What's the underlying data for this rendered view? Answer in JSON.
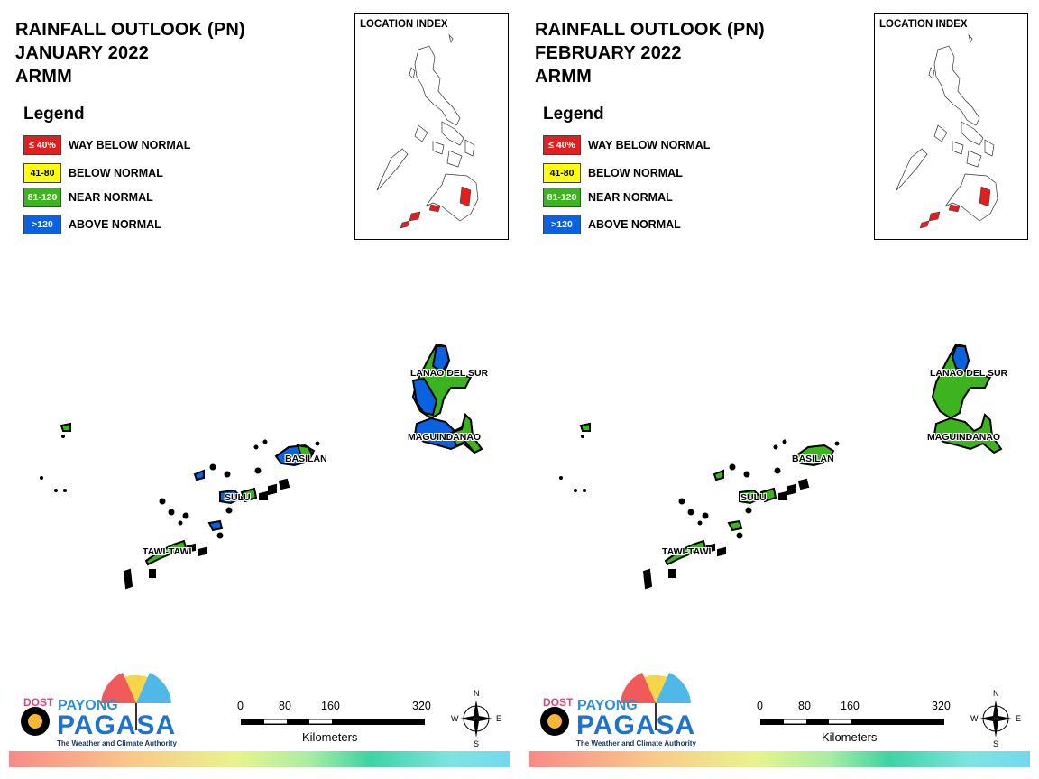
{
  "colors": {
    "way_below_normal": "#e02020",
    "below_normal": "#ffff00",
    "near_normal": "#3cb31f",
    "above_normal": "#0a62e0"
  },
  "panels": [
    {
      "title_line1": "RAINFALL OUTLOOK (PN)",
      "title_line2": "JANUARY 2022",
      "title_line3": "ARMM",
      "legend_title": "Legend",
      "legend": [
        {
          "swatch": "≤ 40%",
          "label": "WAY BELOW NORMAL"
        },
        {
          "swatch": "41-80",
          "label": "BELOW NORMAL"
        },
        {
          "swatch": "81-120",
          "label": "NEAR NORMAL"
        },
        {
          "swatch": ">120",
          "label": "ABOVE NORMAL"
        }
      ],
      "index_label": "LOCATION INDEX",
      "regions": {
        "lanao_del_sur": {
          "label": "LANAO DEL SUR",
          "category": "mixed near/above normal"
        },
        "maguindanao": {
          "label": "MAGUINDANAO",
          "category": "mixed near/above normal"
        },
        "basilan": {
          "label": "BASILAN",
          "category": "above normal"
        },
        "sulu": {
          "label": "SULU",
          "category": "mixed near/above normal"
        },
        "tawi_tawi": {
          "label": "TAWI-TAWI",
          "category": "near normal"
        }
      },
      "logo": {
        "org": "DOST",
        "brand_top": "PAYONG",
        "brand_main": "PAGASA",
        "tagline": "The Weather and Climate Authority"
      },
      "scale": {
        "ticks": [
          "0",
          "80",
          "160",
          "320"
        ],
        "unit": "Kilometers"
      },
      "compass": {
        "n": "N",
        "s": "S",
        "e": "E",
        "w": "W"
      }
    },
    {
      "title_line1": "RAINFALL OUTLOOK (PN)",
      "title_line2": "FEBRUARY 2022",
      "title_line3": "ARMM",
      "legend_title": "Legend",
      "legend": [
        {
          "swatch": "≤ 40%",
          "label": "WAY BELOW NORMAL"
        },
        {
          "swatch": "41-80",
          "label": "BELOW NORMAL"
        },
        {
          "swatch": "81-120",
          "label": "NEAR NORMAL"
        },
        {
          "swatch": ">120",
          "label": "ABOVE NORMAL"
        }
      ],
      "index_label": "LOCATION INDEX",
      "regions": {
        "lanao_del_sur": {
          "label": "LANAO DEL SUR",
          "category": "mostly near normal"
        },
        "maguindanao": {
          "label": "MAGUINDANAO",
          "category": "near normal"
        },
        "basilan": {
          "label": "BASILAN",
          "category": "near normal"
        },
        "sulu": {
          "label": "SULU",
          "category": "near normal"
        },
        "tawi_tawi": {
          "label": "TAWI-TAWI",
          "category": "near normal"
        }
      },
      "logo": {
        "org": "DOST",
        "brand_top": "PAYONG",
        "brand_main": "PAGASA",
        "tagline": "The Weather and Climate Authority"
      },
      "scale": {
        "ticks": [
          "0",
          "80",
          "160",
          "320"
        ],
        "unit": "Kilometers"
      },
      "compass": {
        "n": "N",
        "s": "S",
        "e": "E",
        "w": "W"
      }
    }
  ]
}
